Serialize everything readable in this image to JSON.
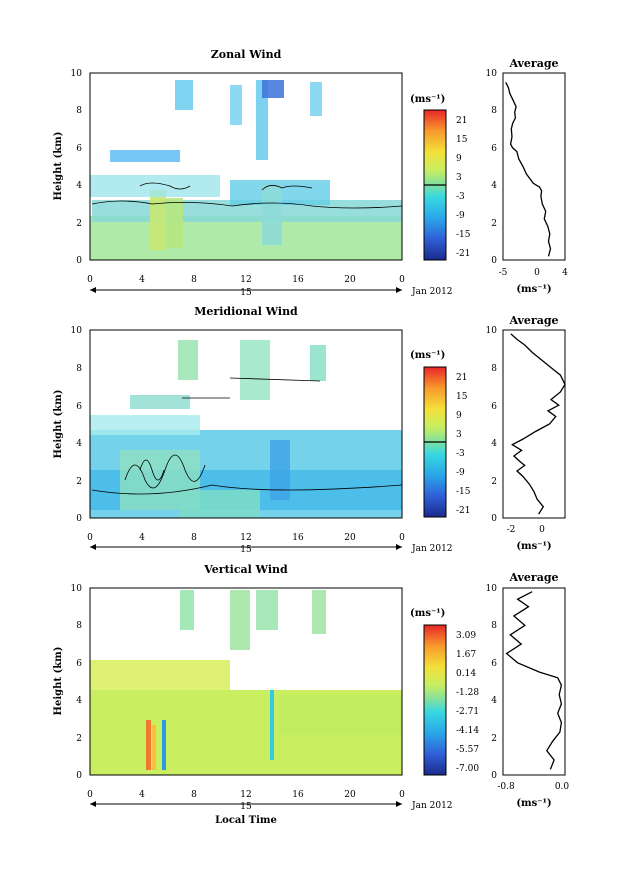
{
  "figure": {
    "xlabel": "Local Time",
    "date_axis": {
      "day": "15",
      "month_label": "Jan 2012"
    }
  },
  "chart_data": [
    {
      "type": "heatmap",
      "title": "Zonal Wind",
      "xlabel": "",
      "ylabel": "Height (km)",
      "xlim": [
        0,
        24
      ],
      "ylim": [
        0,
        10
      ],
      "xticks": [
        "0",
        "4",
        "8",
        "12",
        "16",
        "20",
        "0"
      ],
      "yticks": [
        "0",
        "2",
        "4",
        "6",
        "8",
        "10"
      ],
      "colorbar": {
        "unit": "(ms⁻¹)",
        "ticks": [
          "21",
          "15",
          "9",
          "3",
          "-3",
          "-9",
          "-15",
          "-21"
        ],
        "range": [
          -21,
          21
        ]
      },
      "profile": {
        "title": "Average",
        "xlabel": "(ms⁻¹)",
        "xticks": [
          "-5",
          "0",
          "4"
        ],
        "xlim": [
          -5,
          4
        ],
        "ylim": [
          0,
          10
        ],
        "yticks": [
          "0",
          "2",
          "4",
          "6",
          "8",
          "10"
        ],
        "x": [
          1.6,
          1.9,
          1.6,
          1.8,
          1.5,
          1.0,
          1.2,
          0.7,
          0.5,
          0.6,
          0.3,
          -0.6,
          -1.0,
          -1.6,
          -2.1,
          -2.7,
          -3.0,
          -3.6,
          -3.9,
          -3.7,
          -3.8,
          -3.6,
          -3.2,
          -3.3,
          -3.1,
          -3.6,
          -4.0,
          -4.2,
          -4.6
        ],
        "y": [
          0.2,
          0.6,
          1.0,
          1.4,
          1.8,
          2.2,
          2.6,
          3.0,
          3.4,
          3.7,
          3.9,
          4.1,
          4.3,
          4.6,
          5.0,
          5.4,
          5.8,
          6.0,
          6.2,
          6.6,
          7.0,
          7.3,
          7.6,
          7.9,
          8.2,
          8.6,
          8.9,
          9.2,
          9.5
        ]
      }
    },
    {
      "type": "heatmap",
      "title": "Meridional Wind",
      "xlabel": "",
      "ylabel": "Height (km)",
      "xlim": [
        0,
        24
      ],
      "ylim": [
        0,
        10
      ],
      "xticks": [
        "0",
        "4",
        "8",
        "12",
        "16",
        "20",
        "0"
      ],
      "yticks": [
        "0",
        "2",
        "4",
        "6",
        "8",
        "10"
      ],
      "colorbar": {
        "unit": "(ms⁻¹)",
        "ticks": [
          "21",
          "15",
          "9",
          "3",
          "-3",
          "-9",
          "-15",
          "-21"
        ],
        "range": [
          -21,
          21
        ]
      },
      "profile": {
        "title": "Average",
        "xlabel": "(ms⁻¹)",
        "xticks": [
          "-2",
          "0"
        ],
        "xlim": [
          -2.5,
          1.5
        ],
        "ylim": [
          0,
          10
        ],
        "yticks": [
          "0",
          "2",
          "4",
          "6",
          "8",
          "10"
        ],
        "x": [
          -0.2,
          0.1,
          -0.3,
          -0.5,
          -0.8,
          -1.2,
          -1.6,
          -1.1,
          -1.4,
          -1.8,
          -1.3,
          -1.9,
          -1.2,
          -0.4,
          0.5,
          0.9,
          0.4,
          1.1,
          0.6,
          1.2,
          1.5,
          1.2,
          0.6,
          0.0,
          -0.6,
          -1.1,
          -1.6,
          -2.0
        ],
        "y": [
          0.2,
          0.6,
          1.0,
          1.4,
          1.8,
          2.2,
          2.5,
          2.8,
          3.0,
          3.3,
          3.6,
          3.9,
          4.2,
          4.6,
          5.0,
          5.4,
          5.7,
          6.0,
          6.3,
          6.7,
          7.1,
          7.6,
          8.0,
          8.4,
          8.8,
          9.2,
          9.5,
          9.8
        ]
      }
    },
    {
      "type": "heatmap",
      "title": "Vertical Wind",
      "xlabel": "Local Time",
      "ylabel": "Height (km)",
      "xlim": [
        0,
        24
      ],
      "ylim": [
        0,
        10
      ],
      "xticks": [
        "0",
        "4",
        "8",
        "12",
        "16",
        "20",
        "0"
      ],
      "yticks": [
        "0",
        "2",
        "4",
        "6",
        "8",
        "10"
      ],
      "colorbar": {
        "unit": "(ms⁻¹)",
        "ticks": [
          "3.09",
          "1.67",
          "0.14",
          "-1.28",
          "-2.71",
          "-4.14",
          "-5.57",
          "-7.00"
        ],
        "range": [
          -7.0,
          3.09
        ]
      },
      "profile": {
        "title": "Average",
        "xlabel": "(ms⁻¹)",
        "xticks": [
          "-0.8",
          "0.0"
        ],
        "xlim": [
          -0.8,
          0.05
        ],
        "ylim": [
          0,
          10
        ],
        "yticks": [
          "0",
          "2",
          "4",
          "6",
          "8",
          "10"
        ],
        "x": [
          -0.15,
          -0.1,
          -0.2,
          -0.12,
          -0.02,
          0.0,
          -0.05,
          0.0,
          -0.03,
          0.0,
          -0.05,
          -0.3,
          -0.6,
          -0.75,
          -0.55,
          -0.7,
          -0.5,
          -0.65,
          -0.45,
          -0.6,
          -0.4
        ],
        "y": [
          0.3,
          0.8,
          1.3,
          1.8,
          2.3,
          2.8,
          3.3,
          3.8,
          4.3,
          4.8,
          5.2,
          5.5,
          6.0,
          6.5,
          7.0,
          7.5,
          8.0,
          8.5,
          9.0,
          9.4,
          9.8
        ]
      }
    }
  ]
}
